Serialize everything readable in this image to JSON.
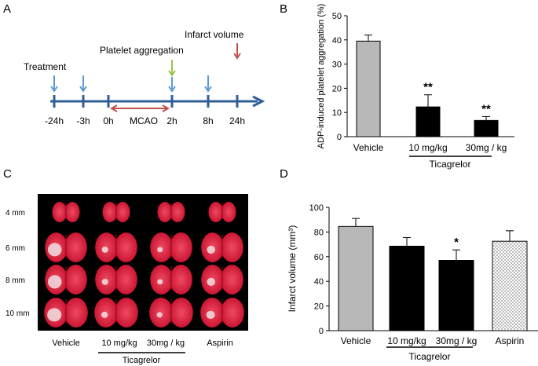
{
  "colors": {
    "timeline": "#2e5f97",
    "blue_arrow": "#5b9bd5",
    "green_arrow": "#9dc34a",
    "red_arrow": "#c0504d",
    "gray_bar": "#b8b8b8",
    "black_bar": "#000000",
    "photo_bg": "#000000",
    "tissue_red": "#d8203a",
    "tissue_white": "#f0e0e2"
  },
  "panelA": {
    "label": "A",
    "event_treatment": "Treatment",
    "event_platelet": "Platelet aggregation",
    "event_infarct": "Infarct volume",
    "mcao": "MCAO",
    "times": [
      {
        "label": "-24h",
        "arrow": "blue"
      },
      {
        "label": "-3h",
        "arrow": "blue"
      },
      {
        "label": "0h",
        "arrow": null
      },
      {
        "label": "2h",
        "arrow": "green_blue"
      },
      {
        "label": "8h",
        "arrow": "blue"
      },
      {
        "label": "24h",
        "arrow": "red"
      }
    ]
  },
  "panelB": {
    "label": "B",
    "group_label": "Ticagrelor"
  },
  "panelC": {
    "label": "C",
    "rows": [
      "4 mm",
      "6 mm",
      "8 mm",
      "10 mm"
    ],
    "columns": [
      "Vehicle",
      "10 mg/kg",
      "30mg / kg",
      "Aspirin"
    ],
    "group_label": "Ticagrelor"
  },
  "panelD": {
    "label": "D",
    "group_label": "Ticagrelor"
  },
  "chart_data": [
    {
      "type": "bar",
      "panel": "B",
      "title": "",
      "xlabel": "",
      "ylabel": "ADP-induced platelet aggregation (%)",
      "ylim": [
        0,
        50
      ],
      "yticks": [
        0,
        10,
        20,
        30,
        40,
        50
      ],
      "categories": [
        "Vehicle",
        "10 mg/kg",
        "30mg / kg"
      ],
      "values": [
        39.5,
        12.3,
        6.7
      ],
      "errors": [
        2.5,
        5.0,
        1.6
      ],
      "fills": [
        "gray",
        "black",
        "black"
      ],
      "annotations": [
        "",
        "**",
        "**"
      ]
    },
    {
      "type": "bar",
      "panel": "D",
      "title": "",
      "xlabel": "",
      "ylabel": "Infarct volume (mm³)",
      "ylim": [
        0,
        100
      ],
      "yticks": [
        0,
        20,
        40,
        60,
        80,
        100
      ],
      "categories": [
        "Vehicle",
        "10 mg/kg",
        "30mg / kg",
        "Aspirin"
      ],
      "values": [
        84.5,
        68.5,
        57.0,
        72.5
      ],
      "errors": [
        6.5,
        7.0,
        8.5,
        8.5
      ],
      "fills": [
        "gray",
        "black",
        "black",
        "dotted"
      ],
      "annotations": [
        "",
        "",
        "*",
        ""
      ]
    }
  ]
}
